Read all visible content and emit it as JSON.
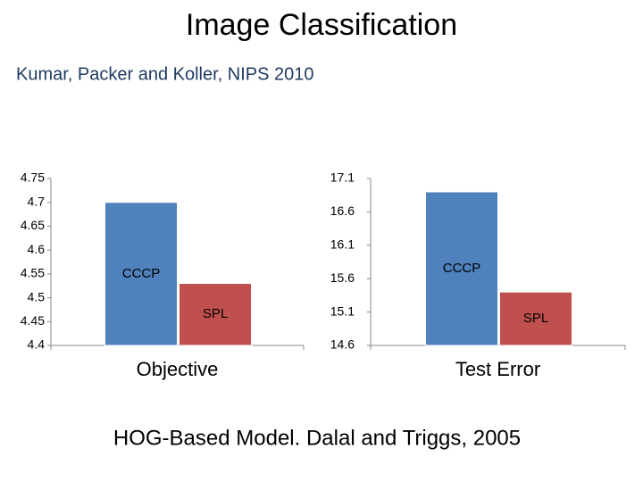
{
  "slide": {
    "title": "Image Classification",
    "subtitle": "Kumar, Packer and Koller, NIPS 2010",
    "caption": "HOG-Based Model. Dalal and Triggs, 2005"
  },
  "chart_data": [
    {
      "type": "bar",
      "categories": [
        "Objective"
      ],
      "series": [
        {
          "name": "CCCP",
          "color": "#4f81bd",
          "values": [
            4.7
          ]
        },
        {
          "name": "SPL",
          "color": "#c0504d",
          "values": [
            4.53
          ]
        }
      ],
      "ylim": [
        4.4,
        4.75
      ],
      "yticks": [
        4.4,
        4.45,
        4.5,
        4.55,
        4.6,
        4.65,
        4.7,
        4.75
      ],
      "grid": false
    },
    {
      "type": "bar",
      "categories": [
        "Test Error"
      ],
      "series": [
        {
          "name": "CCCP",
          "color": "#4f81bd",
          "values": [
            16.9
          ]
        },
        {
          "name": "SPL",
          "color": "#c0504d",
          "values": [
            15.4
          ]
        }
      ],
      "ylim": [
        14.6,
        17.1
      ],
      "yticks": [
        14.6,
        15.1,
        15.6,
        16.1,
        16.6,
        17.1
      ],
      "grid": false
    }
  ]
}
